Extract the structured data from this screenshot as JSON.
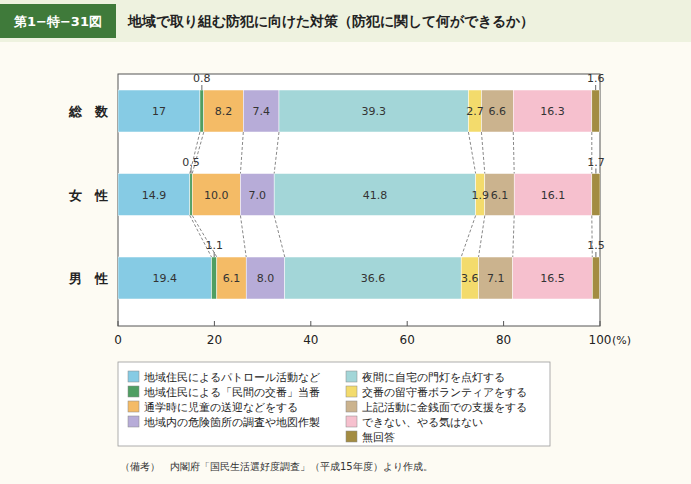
{
  "chart_data": {
    "type": "bar",
    "orientation": "horizontal",
    "stacked": true,
    "data_labels": true,
    "grid": false,
    "legend": "bottom",
    "figure_number": "第1−特−31図",
    "title": "地域で取り組む防犯に向けた対策（防犯に関して何ができるか）",
    "x_label": "(%)",
    "note": "（備考）　内閣府「国民生活選好度調査」（平成15年度）より作成。",
    "categories": [
      "総　数",
      "女　性",
      "男　性"
    ],
    "xlim": [
      0,
      100
    ],
    "xticks": [
      0,
      20,
      40,
      60,
      80,
      100
    ],
    "series": [
      {
        "name": "地域住民によるパトロール活動など",
        "color": "#86cbe4",
        "values": [
          17,
          14.9,
          19.4
        ]
      },
      {
        "name": "地域住民による「民間の交番」当番",
        "color": "#4f9e62",
        "values": [
          0.8,
          0.5,
          1.1
        ]
      },
      {
        "name": "通学時に児童の送迎などをする",
        "color": "#f4bb66",
        "values": [
          8.2,
          10,
          6.1
        ],
        "value_labels": [
          "8.2",
          "10.0",
          "6.1"
        ]
      },
      {
        "name": "地域内の危険箇所の調査や地図作製",
        "color": "#b7acd8",
        "values": [
          7.4,
          7.0,
          8.0
        ],
        "value_labels": [
          "7.4",
          "7.0",
          "8.0"
        ]
      },
      {
        "name": "夜間に自宅の門灯を点灯する",
        "color": "#a3d6d8",
        "values": [
          39.3,
          41.8,
          36.6
        ]
      },
      {
        "name": "交番の留守番ボランティアをする",
        "color": "#f3db6c",
        "values": [
          2.7,
          1.9,
          3.6
        ]
      },
      {
        "name": "上記活動に金銭面での支援をする",
        "color": "#cbb38e",
        "values": [
          6.6,
          6.1,
          7.1
        ]
      },
      {
        "name": "できない、やる気はない",
        "color": "#f6c0ce",
        "values": [
          16.3,
          16.1,
          16.5
        ]
      },
      {
        "name": "無回答",
        "color": "#a38c42",
        "values": [
          1.6,
          1.7,
          1.5
        ]
      }
    ]
  }
}
